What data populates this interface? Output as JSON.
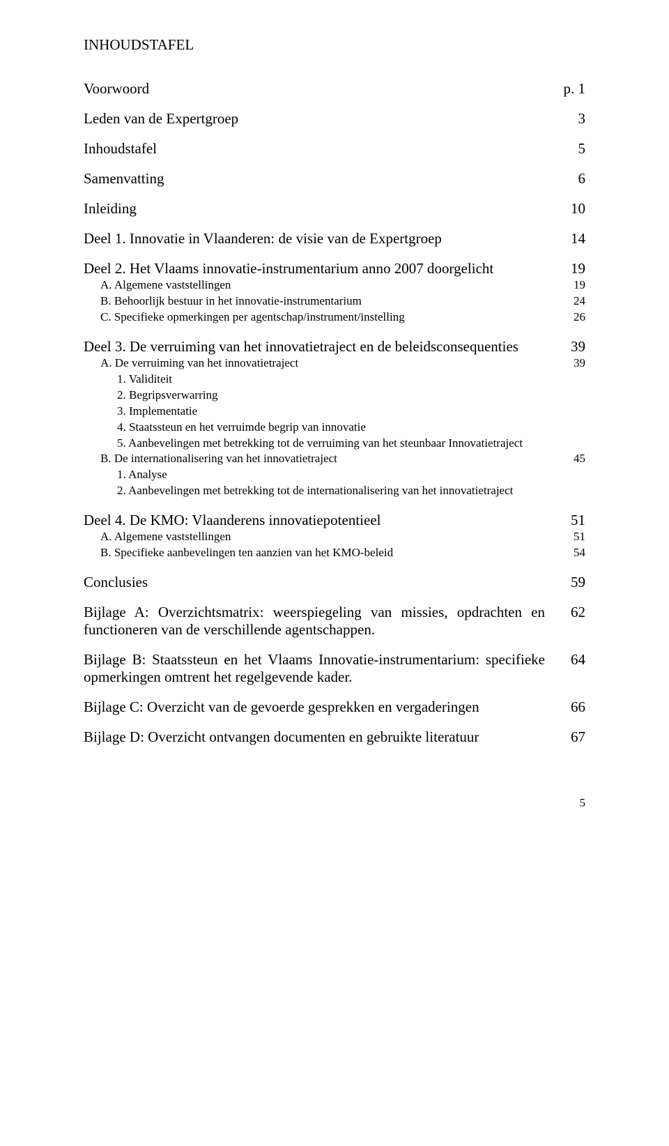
{
  "title": "INHOUDSTAFEL",
  "entries": {
    "voorwoord": {
      "label": "Voorwoord",
      "page": "p. 1"
    },
    "leden": {
      "label": "Leden van de Expertgroep",
      "page": "3"
    },
    "inhoudstafel": {
      "label": "Inhoudstafel",
      "page": "5"
    },
    "samenvatting": {
      "label": "Samenvatting",
      "page": "6"
    },
    "inleiding": {
      "label": "Inleiding",
      "page": "10"
    },
    "deel1": {
      "label": "Deel 1. Innovatie in Vlaanderen: de visie van de Expertgroep",
      "page": "14"
    },
    "deel2": {
      "label": "Deel 2. Het Vlaams innovatie-instrumentarium anno 2007 doorgelicht",
      "page": "19",
      "a": {
        "label": "A. Algemene vaststellingen",
        "page": "19"
      },
      "b": {
        "label": "B. Behoorlijk bestuur in het innovatie-instrumentarium",
        "page": "24"
      },
      "c": {
        "label": "C. Specifieke opmerkingen per agentschap/instrument/instelling",
        "page": "26"
      }
    },
    "deel3": {
      "label": "Deel 3. De verruiming van het innovatietraject en de beleidsconsequenties",
      "page": "39",
      "a": {
        "label": "A. De verruiming van het innovatietraject",
        "page": "39"
      },
      "a1": "1. Validiteit",
      "a2": "2. Begripsverwarring",
      "a3": "3. Implementatie",
      "a4": "4. Staatssteun en het verruimde begrip van innovatie",
      "a5": "5. Aanbevelingen met betrekking tot de verruiming van het steunbaar Innovatietraject",
      "b": {
        "label": "B. De internationalisering van het innovatietraject",
        "page": "45"
      },
      "b1": "1. Analyse",
      "b2": "2. Aanbevelingen met betrekking tot de internationalisering van het innovatietraject"
    },
    "deel4": {
      "label": "Deel 4. De KMO: Vlaanderens innovatiepotentieel",
      "page": "51",
      "a": {
        "label": "A. Algemene vaststellingen",
        "page": "51"
      },
      "b": {
        "label": "B. Specifieke aanbevelingen ten aanzien van het KMO-beleid",
        "page": "54"
      }
    },
    "conclusies": {
      "label": "Conclusies",
      "page": "59"
    },
    "bijlageA": {
      "prefix": "Bijlage A",
      "rest": ": Overzichtsmatrix: weerspiegeling van missies, opdrachten en functioneren van de verschillende agentschappen.",
      "page": "62"
    },
    "bijlageB": {
      "prefix": "Bijlage B",
      "rest": ": Staatssteun en het Vlaams Innovatie-instrumentarium: specifieke opmerkingen omtrent het regelgevende kader.",
      "page": "64"
    },
    "bijlageC": {
      "prefix": "Bijlage C",
      "rest": ": Overzicht van de gevoerde gesprekken en vergaderingen",
      "page": "66"
    },
    "bijlageD": {
      "prefix": "Bijlage D",
      "rest": ": Overzicht ontvangen documenten en gebruikte literatuur",
      "page": "67"
    }
  },
  "footer": "5"
}
